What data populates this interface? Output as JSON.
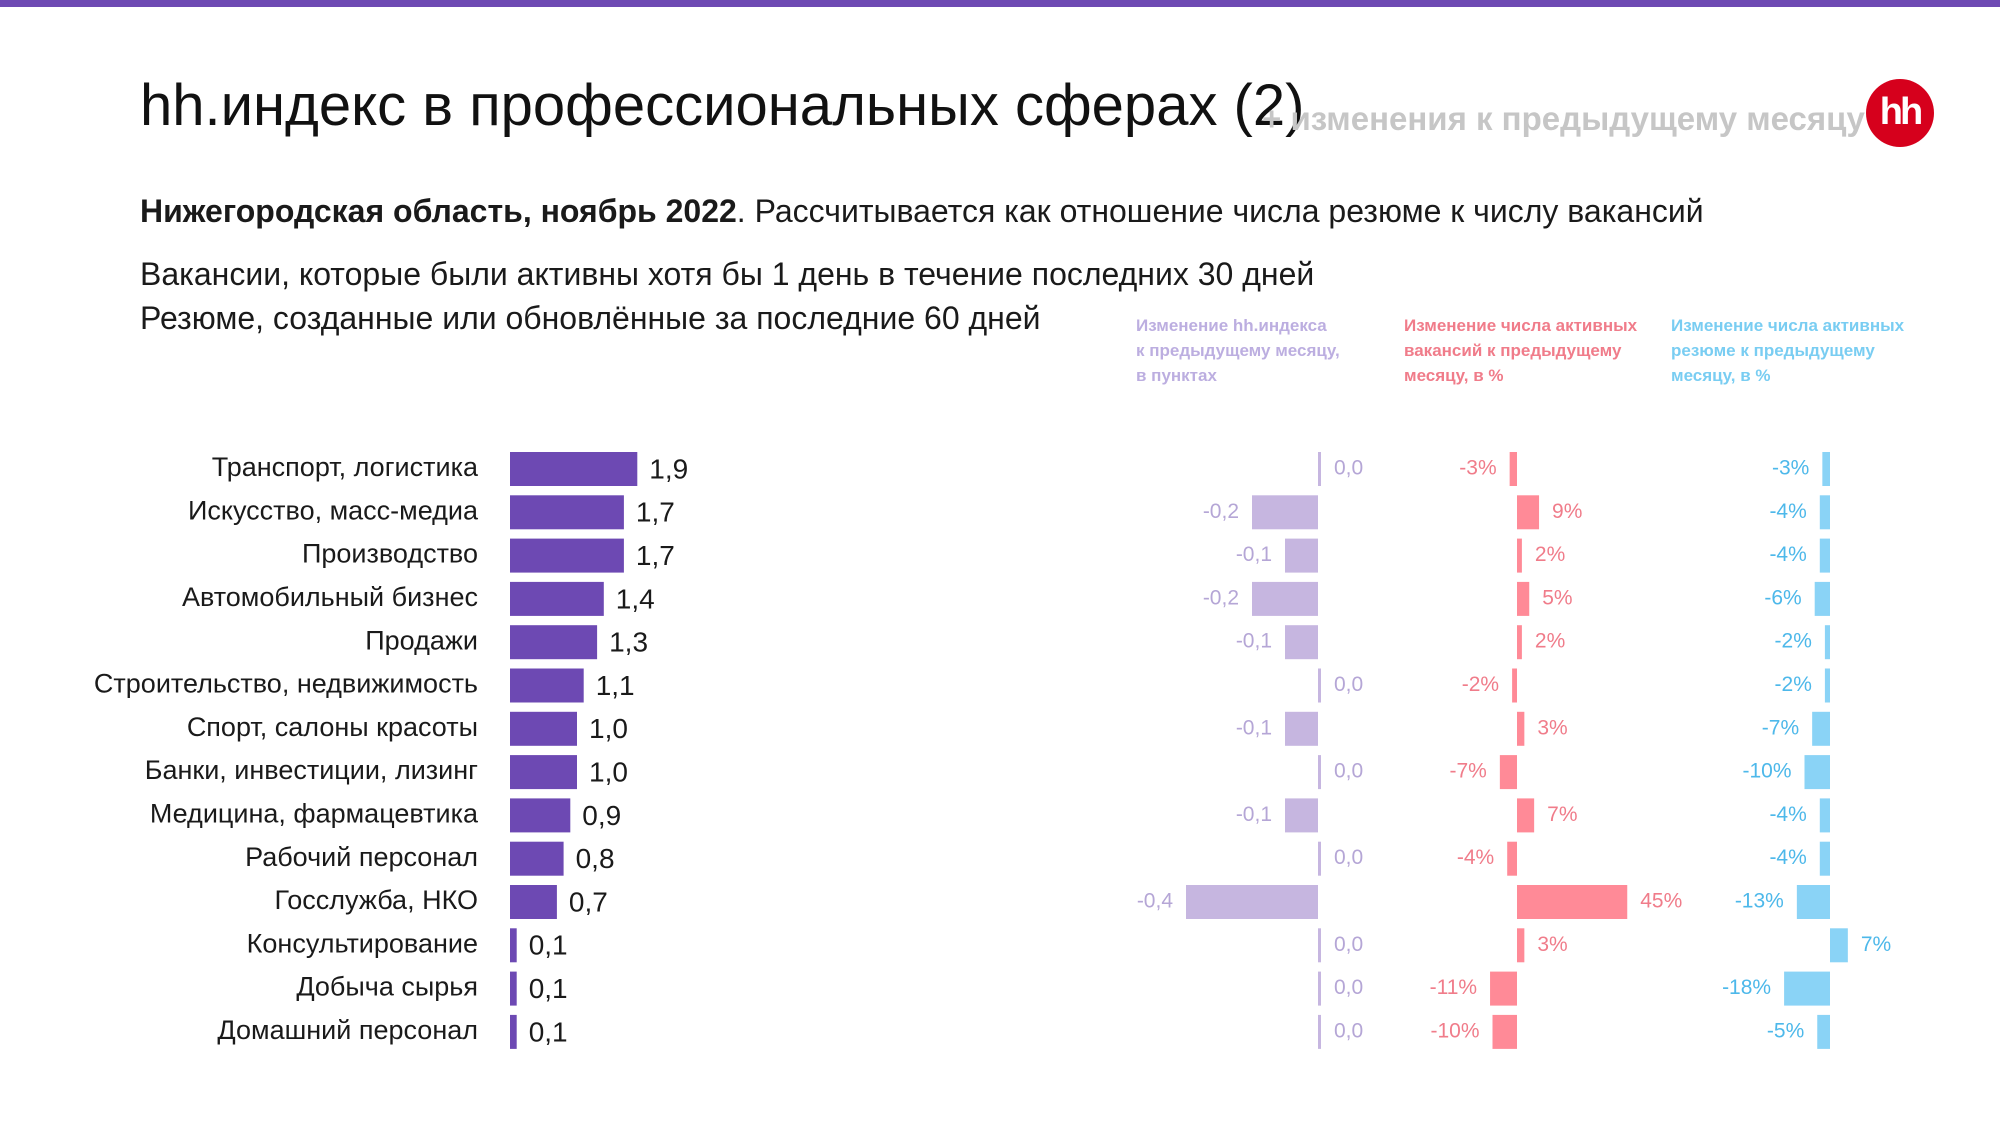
{
  "header": {
    "title": "hh.индекс в профессиональных сферах (2)",
    "title_note": "+ изменения к предыдущему месяцу",
    "logo_text": "hh",
    "subtitle_bold": "Нижегородская область, ноябрь 2022",
    "subtitle_rest": ". Рассчитывается как отношение числа резюме к числу вакансий",
    "desc_line1": "Вакансии, которые были активны хотя бы 1 день в течение последних 30 дней",
    "desc_line2": "Резюме, созданные или обновлённые за последние 60 дней"
  },
  "colors": {
    "accent": "#6e4ab3",
    "index_bar": "#6d49b3",
    "index_change": "#c6b6e0",
    "index_change_text": "#b5a6d6",
    "vacancy_change": "#ff8a97",
    "vacancy_change_text": "#f07c8a",
    "resume_change": "#8ad3f6",
    "resume_change_text": "#4db8ea",
    "logo": "#d6001c"
  },
  "column_headers": {
    "index_change": [
      "Изменение hh.индекса",
      "к предыдущему месяцу,",
      "в пунктах"
    ],
    "vacancy_change": [
      "Изменение числа активных",
      "вакансий к предыдущему",
      "месяцу, в %"
    ],
    "resume_change": [
      "Изменение числа активных",
      "резюме к предыдущему",
      "месяцу, в %"
    ]
  },
  "chart_data": [
    {
      "type": "bar",
      "orientation": "horizontal",
      "title": "",
      "categories": [
        "Транспорт, логистика",
        "Искусство, масс-медиа",
        "Производство",
        "Автомобильный бизнес",
        "Продажи",
        "Строительство, недвижимость",
        "Спорт, салоны красоты",
        "Банки, инвестиции, лизинг",
        "Медицина, фармацевтика",
        "Рабочий персонал",
        "Госслужба, НКО",
        "Консультирование",
        "Добыча сырья",
        "Домашний персонал"
      ],
      "values": [
        1.9,
        1.7,
        1.7,
        1.4,
        1.3,
        1.1,
        1.0,
        1.0,
        0.9,
        0.8,
        0.7,
        0.1,
        0.1,
        0.1
      ],
      "labels": [
        "1,9",
        "1,7",
        "1,7",
        "1,4",
        "1,3",
        "1,1",
        "1,0",
        "1,0",
        "0,9",
        "0,8",
        "0,7",
        "0,1",
        "0,1",
        "0,1"
      ],
      "xlim": [
        0,
        1.9
      ]
    },
    {
      "type": "bar",
      "orientation": "horizontal",
      "title": "Изменение hh.индекса к предыдущему месяцу, в пунктах",
      "values": [
        0.0,
        -0.2,
        -0.1,
        -0.2,
        -0.1,
        0.0,
        -0.1,
        0.0,
        -0.1,
        0.0,
        -0.4,
        0.0,
        0.0,
        0.0
      ],
      "labels": [
        "0,0",
        "-0,2",
        "-0,1",
        "-0,2",
        "-0,1",
        "0,0",
        "-0,1",
        "0,0",
        "-0,1",
        "0,0",
        "-0,4",
        "0,0",
        "0,0",
        "0,0"
      ]
    },
    {
      "type": "bar",
      "orientation": "horizontal",
      "title": "Изменение числа активных вакансий к предыдущему месяцу, в %",
      "values": [
        -3,
        9,
        2,
        5,
        2,
        -2,
        3,
        -7,
        7,
        -4,
        45,
        3,
        -11,
        -10
      ],
      "labels": [
        "-3%",
        "9%",
        "2%",
        "5%",
        "2%",
        "-2%",
        "3%",
        "-7%",
        "7%",
        "-4%",
        "45%",
        "3%",
        "-11%",
        "-10%"
      ]
    },
    {
      "type": "bar",
      "orientation": "horizontal",
      "title": "Изменение числа активных резюме к предыдущему месяцу, в %",
      "values": [
        -3,
        -4,
        -4,
        -6,
        -2,
        -2,
        -7,
        -10,
        -4,
        -4,
        -13,
        7,
        -18,
        -5
      ],
      "labels": [
        "-3%",
        "-4%",
        "-4%",
        "-6%",
        "-2%",
        "-2%",
        "-7%",
        "-10%",
        "-4%",
        "-4%",
        "-13%",
        "7%",
        "-18%",
        "-5%"
      ]
    }
  ]
}
